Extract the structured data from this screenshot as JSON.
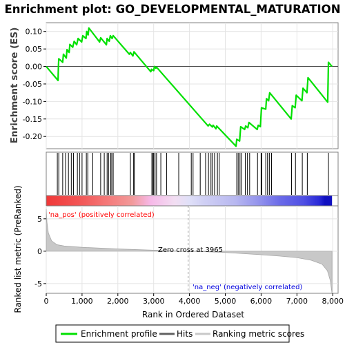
{
  "chart_data": {
    "title": "Enrichment plot: GO_DEVELOPMENTAL_MATURATION",
    "es_panel": {
      "type": "line",
      "ylabel": "Enrichment score (ES)",
      "ylim": [
        -0.235,
        0.125
      ],
      "yticks": [
        -0.2,
        -0.15,
        -0.1,
        -0.05,
        0.0,
        0.05,
        0.1
      ],
      "ytick_labels": [
        "-0.20",
        "-0.15",
        "-0.10",
        "-0.05",
        "0.00",
        "0.05",
        "0.10"
      ],
      "series_name": "Enrichment profile",
      "color": "#00e000",
      "points": [
        [
          0,
          0.0
        ],
        [
          330,
          -0.04
        ],
        [
          340,
          0.0
        ],
        [
          350,
          0.022
        ],
        [
          460,
          0.012
        ],
        [
          480,
          0.035
        ],
        [
          560,
          0.024
        ],
        [
          580,
          0.048
        ],
        [
          640,
          0.04
        ],
        [
          660,
          0.063
        ],
        [
          740,
          0.055
        ],
        [
          780,
          0.072
        ],
        [
          850,
          0.062
        ],
        [
          890,
          0.08
        ],
        [
          990,
          0.07
        ],
        [
          1020,
          0.088
        ],
        [
          1110,
          0.08
        ],
        [
          1130,
          0.1
        ],
        [
          1170,
          0.09
        ],
        [
          1190,
          0.11
        ],
        [
          1490,
          0.07
        ],
        [
          1520,
          0.082
        ],
        [
          1680,
          0.062
        ],
        [
          1700,
          0.08
        ],
        [
          1760,
          0.072
        ],
        [
          1790,
          0.088
        ],
        [
          1840,
          0.08
        ],
        [
          1870,
          0.088
        ],
        [
          2320,
          0.035
        ],
        [
          2350,
          0.04
        ],
        [
          2420,
          0.03
        ],
        [
          2450,
          0.042
        ],
        [
          2920,
          -0.015
        ],
        [
          2940,
          -0.008
        ],
        [
          3000,
          -0.012
        ],
        [
          3020,
          0.0
        ],
        [
          3060,
          -0.005
        ],
        [
          3080,
          -0.002
        ],
        [
          4520,
          -0.17
        ],
        [
          4560,
          -0.165
        ],
        [
          4640,
          -0.173
        ],
        [
          4660,
          -0.168
        ],
        [
          4740,
          -0.178
        ],
        [
          4760,
          -0.17
        ],
        [
          5300,
          -0.228
        ],
        [
          5320,
          -0.208
        ],
        [
          5400,
          -0.213
        ],
        [
          5430,
          -0.172
        ],
        [
          5540,
          -0.18
        ],
        [
          5570,
          -0.17
        ],
        [
          5630,
          -0.175
        ],
        [
          5660,
          -0.16
        ],
        [
          5890,
          -0.18
        ],
        [
          5920,
          -0.168
        ],
        [
          5980,
          -0.172
        ],
        [
          6010,
          -0.118
        ],
        [
          6130,
          -0.122
        ],
        [
          6150,
          -0.092
        ],
        [
          6210,
          -0.098
        ],
        [
          6240,
          -0.075
        ],
        [
          6840,
          -0.15
        ],
        [
          6870,
          -0.112
        ],
        [
          6950,
          -0.118
        ],
        [
          6980,
          -0.082
        ],
        [
          7140,
          -0.098
        ],
        [
          7170,
          -0.062
        ],
        [
          7280,
          -0.075
        ],
        [
          7310,
          -0.032
        ],
        [
          7860,
          -0.102
        ],
        [
          7880,
          0.012
        ],
        [
          7980,
          0.0
        ]
      ]
    },
    "hits_panel": {
      "series_name": "Hits",
      "hit_ranks": [
        310,
        350,
        460,
        540,
        620,
        700,
        760,
        870,
        930,
        1000,
        1120,
        1160,
        1300,
        1520,
        1620,
        1700,
        1740,
        1800,
        1830,
        1870,
        2350,
        2440,
        2460,
        2950,
        2980,
        3000,
        3040,
        3080,
        3200,
        3360,
        3700,
        4050,
        4100,
        4300,
        4450,
        4530,
        4600,
        4640,
        4700,
        4780,
        4830,
        5320,
        5360,
        5410,
        5450,
        5560,
        5620,
        5680,
        5900,
        6000,
        6020,
        6130,
        6180,
        6230,
        6290,
        6850,
        6960,
        7150,
        7290,
        7880
      ]
    },
    "gradient_bar": {
      "stops": [
        [
          0.0,
          "#f03838"
        ],
        [
          0.13,
          "#f25a5a"
        ],
        [
          0.21,
          "#f47878"
        ],
        [
          0.3,
          "#f29a9a"
        ],
        [
          0.365,
          "#f6b8e8"
        ],
        [
          0.45,
          "#f2def2"
        ],
        [
          0.5,
          "#e0e0f8"
        ],
        [
          0.55,
          "#d0d0f4"
        ],
        [
          0.66,
          "#b8b8f0"
        ],
        [
          0.75,
          "#9090ec"
        ],
        [
          0.82,
          "#6a6ae8"
        ],
        [
          0.9,
          "#5050e4"
        ],
        [
          0.955,
          "#2a2ad8"
        ],
        [
          0.975,
          "#1010c0"
        ],
        [
          1.0,
          "#1010c0"
        ]
      ]
    },
    "metric_panel": {
      "type": "area",
      "ylabel": "Ranked list metric (PreRanked)",
      "ylim": [
        -6.5,
        7.0
      ],
      "yticks": [
        -5,
        0,
        5
      ],
      "ytick_labels": [
        "-5",
        "0",
        "5"
      ],
      "series_name": "Ranking metric scores",
      "color": "#c8c8c8",
      "points": [
        [
          0,
          6.5
        ],
        [
          20,
          4.5
        ],
        [
          60,
          2.8
        ],
        [
          150,
          1.6
        ],
        [
          300,
          1.0
        ],
        [
          500,
          0.8
        ],
        [
          1000,
          0.6
        ],
        [
          2000,
          0.35
        ],
        [
          3000,
          0.15
        ],
        [
          3965,
          0.0
        ],
        [
          5000,
          -0.2
        ],
        [
          6000,
          -0.55
        ],
        [
          6500,
          -0.75
        ],
        [
          7000,
          -1.0
        ],
        [
          7400,
          -1.4
        ],
        [
          7700,
          -2.0
        ],
        [
          7850,
          -3.0
        ],
        [
          7930,
          -4.5
        ],
        [
          7980,
          -6.5
        ]
      ],
      "zero_cross_label": "Zero cross at 3965",
      "zero_cross_x": 3965,
      "pos_label": "'na_pos' (positively correlated)",
      "pos_color": "#ff0000",
      "neg_label": "'na_neg' (negatively correlated)",
      "neg_color": "#0000dd"
    },
    "x_axis": {
      "xlabel": "Rank in Ordered Dataset",
      "xlim": [
        0,
        8150
      ],
      "xticks": [
        0,
        1000,
        2000,
        3000,
        4000,
        5000,
        6000,
        7000,
        8000
      ],
      "xtick_labels": [
        "0",
        "1,000",
        "2,000",
        "3,000",
        "4,000",
        "5,000",
        "6,000",
        "7,000",
        "8,000"
      ]
    },
    "legend": {
      "placement": "bottom",
      "items": [
        {
          "label": "Enrichment profile",
          "color": "#00e000"
        },
        {
          "label": "Hits",
          "color": "#606060"
        },
        {
          "label": "Ranking metric scores",
          "color": "#c8c8c8"
        }
      ]
    }
  }
}
